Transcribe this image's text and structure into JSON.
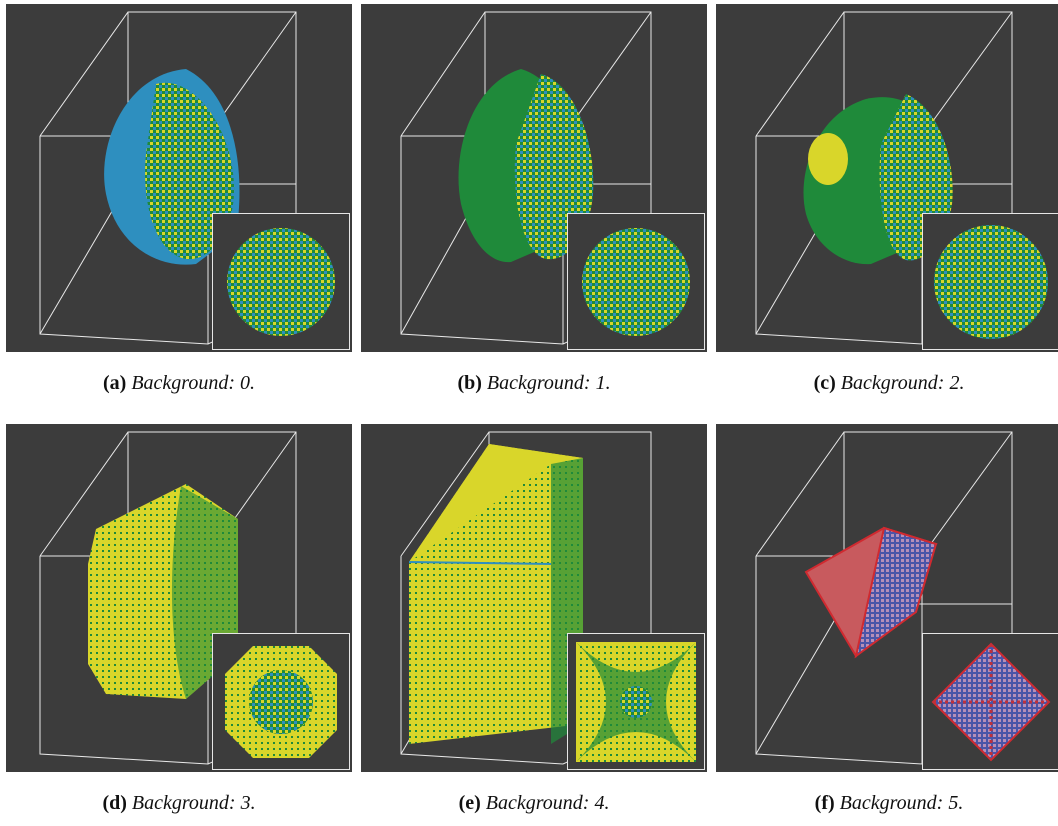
{
  "figure": {
    "panels": [
      {
        "id": "a",
        "label": "(a)",
        "caption": "Background: 0.",
        "shape": "hemisphere",
        "palette": [
          "#2e8fbf",
          "#1f8a3a",
          "#d9d62a"
        ]
      },
      {
        "id": "b",
        "label": "(b)",
        "caption": "Background: 1.",
        "shape": "hemisphere",
        "palette": [
          "#2e8fbf",
          "#1f8a3a",
          "#d9d62a"
        ]
      },
      {
        "id": "c",
        "label": "(c)",
        "caption": "Background: 2.",
        "shape": "hemisphere",
        "palette": [
          "#1f8a3a",
          "#d9d62a",
          "#2e8fbf"
        ]
      },
      {
        "id": "d",
        "label": "(d)",
        "caption": "Background: 3.",
        "shape": "octagon-block",
        "palette": [
          "#d9d62a",
          "#1f8a3a",
          "#2e8fbf"
        ]
      },
      {
        "id": "e",
        "label": "(e)",
        "caption": "Background: 4.",
        "shape": "box",
        "palette": [
          "#d9d62a",
          "#1f8a3a",
          "#2e8fbf"
        ]
      },
      {
        "id": "f",
        "label": "(f)",
        "caption": "Background: 5.",
        "shape": "pyramid",
        "palette": [
          "#c0303a",
          "#4a55a8",
          "#b58fb8"
        ]
      }
    ]
  }
}
